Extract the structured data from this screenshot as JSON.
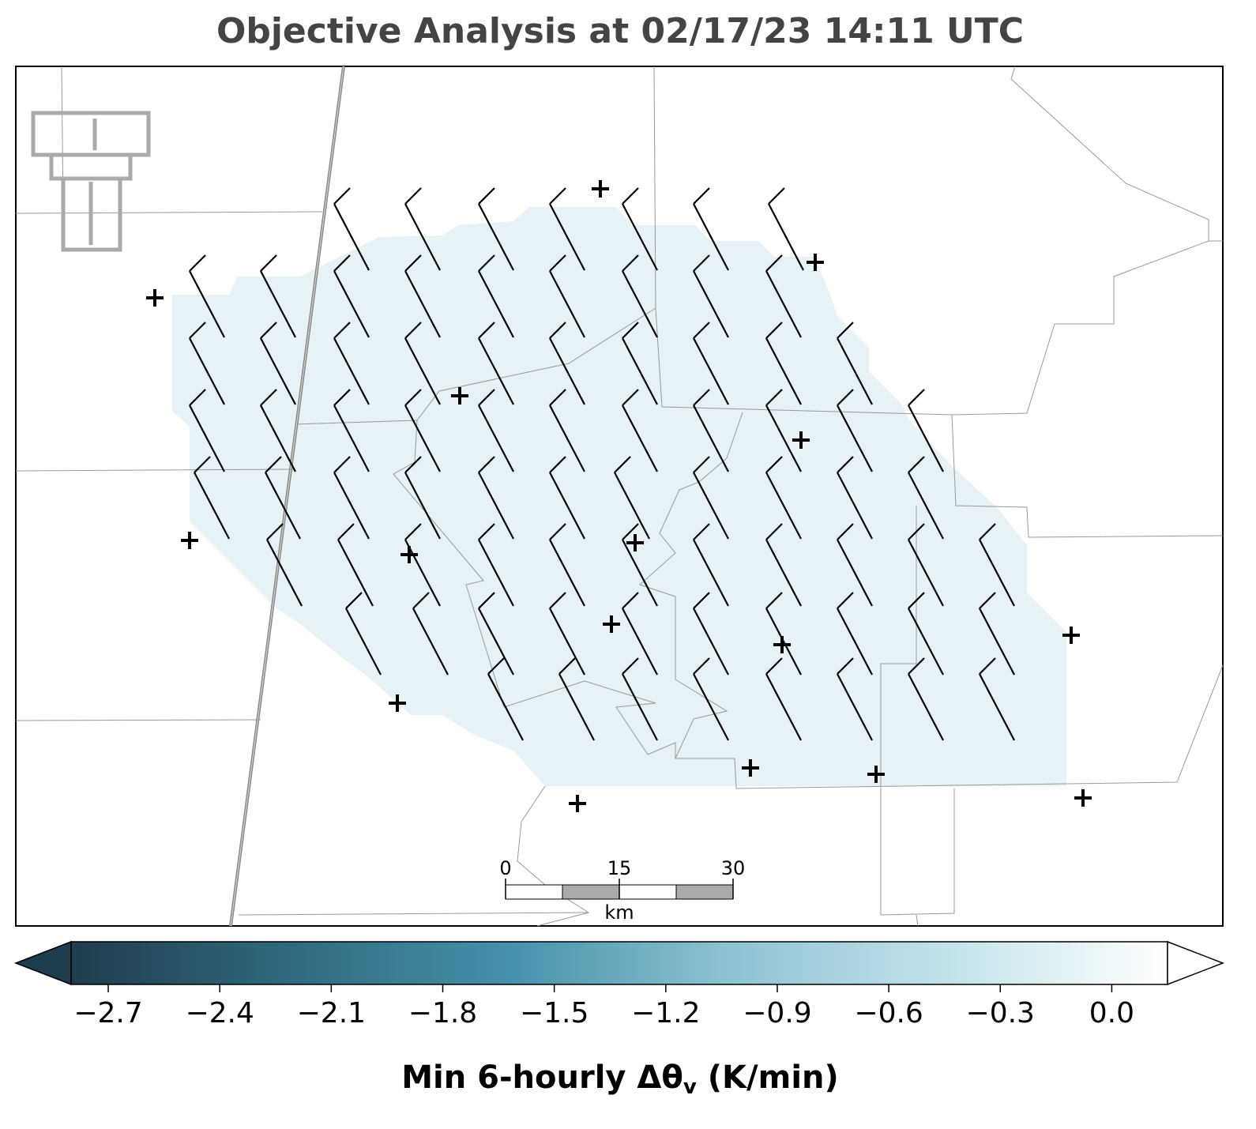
{
  "chart_data": {
    "type": "map",
    "title": "Objective Analysis at 02/17/23 14:11 UTC",
    "colorbar": {
      "label": {
        "main": "Min 6-hourly Δθ",
        "sub": "v",
        "rest": " (K/min)"
      },
      "clim": [
        -2.8,
        0.15
      ],
      "extend": "both",
      "colors": [
        "#1f3d4c",
        "#306a80",
        "#4691ab",
        "#8ec3d3",
        "#c2e3ea",
        "#ffffff"
      ],
      "ticks": [
        {
          "value": -2.7,
          "label": "−2.7"
        },
        {
          "value": -2.4,
          "label": "−2.4"
        },
        {
          "value": -2.1,
          "label": "−2.1"
        },
        {
          "value": -1.8,
          "label": "−1.8"
        },
        {
          "value": -1.5,
          "label": "−1.5"
        },
        {
          "value": -1.2,
          "label": "−1.2"
        },
        {
          "value": -0.9,
          "label": "−0.9"
        },
        {
          "value": -0.6,
          "label": "−0.6"
        },
        {
          "value": -0.3,
          "label": "−0.3"
        },
        {
          "value": 0,
          "label": "0.0"
        }
      ]
    },
    "scale_bar": {
      "ticks": [
        0,
        15,
        30
      ],
      "unit": "km"
    }
  }
}
